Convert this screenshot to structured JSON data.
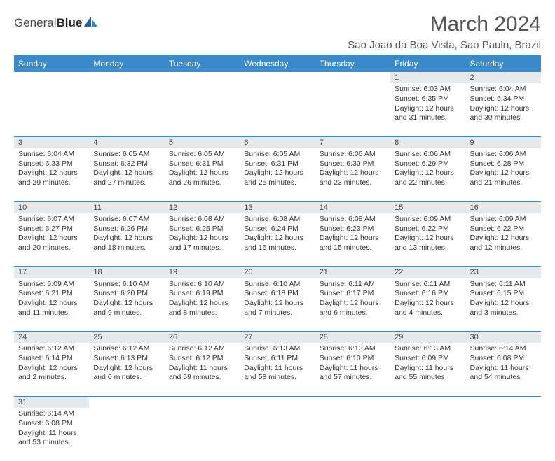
{
  "brand": {
    "word1": "General",
    "word2": "Blue"
  },
  "title": "March 2024",
  "location": "Sao Joao da Boa Vista, Sao Paulo, Brazil",
  "colors": {
    "header_bg": "#3a89c9",
    "header_text": "#ffffff",
    "daynum_bg": "#e7e8ea",
    "border": "#3a89c9",
    "body_text": "#333333",
    "title_color": "#555555"
  },
  "day_headers": [
    "Sunday",
    "Monday",
    "Tuesday",
    "Wednesday",
    "Thursday",
    "Friday",
    "Saturday"
  ],
  "weeks": [
    {
      "nums": [
        "",
        "",
        "",
        "",
        "",
        "1",
        "2"
      ],
      "cells": [
        null,
        null,
        null,
        null,
        null,
        {
          "sr": "Sunrise: 6:03 AM",
          "ss": "Sunset: 6:35 PM",
          "d1": "Daylight: 12 hours",
          "d2": "and 31 minutes."
        },
        {
          "sr": "Sunrise: 6:04 AM",
          "ss": "Sunset: 6:34 PM",
          "d1": "Daylight: 12 hours",
          "d2": "and 30 minutes."
        }
      ]
    },
    {
      "nums": [
        "3",
        "4",
        "5",
        "6",
        "7",
        "8",
        "9"
      ],
      "cells": [
        {
          "sr": "Sunrise: 6:04 AM",
          "ss": "Sunset: 6:33 PM",
          "d1": "Daylight: 12 hours",
          "d2": "and 29 minutes."
        },
        {
          "sr": "Sunrise: 6:05 AM",
          "ss": "Sunset: 6:32 PM",
          "d1": "Daylight: 12 hours",
          "d2": "and 27 minutes."
        },
        {
          "sr": "Sunrise: 6:05 AM",
          "ss": "Sunset: 6:31 PM",
          "d1": "Daylight: 12 hours",
          "d2": "and 26 minutes."
        },
        {
          "sr": "Sunrise: 6:05 AM",
          "ss": "Sunset: 6:31 PM",
          "d1": "Daylight: 12 hours",
          "d2": "and 25 minutes."
        },
        {
          "sr": "Sunrise: 6:06 AM",
          "ss": "Sunset: 6:30 PM",
          "d1": "Daylight: 12 hours",
          "d2": "and 23 minutes."
        },
        {
          "sr": "Sunrise: 6:06 AM",
          "ss": "Sunset: 6:29 PM",
          "d1": "Daylight: 12 hours",
          "d2": "and 22 minutes."
        },
        {
          "sr": "Sunrise: 6:06 AM",
          "ss": "Sunset: 6:28 PM",
          "d1": "Daylight: 12 hours",
          "d2": "and 21 minutes."
        }
      ]
    },
    {
      "nums": [
        "10",
        "11",
        "12",
        "13",
        "14",
        "15",
        "16"
      ],
      "cells": [
        {
          "sr": "Sunrise: 6:07 AM",
          "ss": "Sunset: 6:27 PM",
          "d1": "Daylight: 12 hours",
          "d2": "and 20 minutes."
        },
        {
          "sr": "Sunrise: 6:07 AM",
          "ss": "Sunset: 6:26 PM",
          "d1": "Daylight: 12 hours",
          "d2": "and 18 minutes."
        },
        {
          "sr": "Sunrise: 6:08 AM",
          "ss": "Sunset: 6:25 PM",
          "d1": "Daylight: 12 hours",
          "d2": "and 17 minutes."
        },
        {
          "sr": "Sunrise: 6:08 AM",
          "ss": "Sunset: 6:24 PM",
          "d1": "Daylight: 12 hours",
          "d2": "and 16 minutes."
        },
        {
          "sr": "Sunrise: 6:08 AM",
          "ss": "Sunset: 6:23 PM",
          "d1": "Daylight: 12 hours",
          "d2": "and 15 minutes."
        },
        {
          "sr": "Sunrise: 6:09 AM",
          "ss": "Sunset: 6:22 PM",
          "d1": "Daylight: 12 hours",
          "d2": "and 13 minutes."
        },
        {
          "sr": "Sunrise: 6:09 AM",
          "ss": "Sunset: 6:22 PM",
          "d1": "Daylight: 12 hours",
          "d2": "and 12 minutes."
        }
      ]
    },
    {
      "nums": [
        "17",
        "18",
        "19",
        "20",
        "21",
        "22",
        "23"
      ],
      "cells": [
        {
          "sr": "Sunrise: 6:09 AM",
          "ss": "Sunset: 6:21 PM",
          "d1": "Daylight: 12 hours",
          "d2": "and 11 minutes."
        },
        {
          "sr": "Sunrise: 6:10 AM",
          "ss": "Sunset: 6:20 PM",
          "d1": "Daylight: 12 hours",
          "d2": "and 9 minutes."
        },
        {
          "sr": "Sunrise: 6:10 AM",
          "ss": "Sunset: 6:19 PM",
          "d1": "Daylight: 12 hours",
          "d2": "and 8 minutes."
        },
        {
          "sr": "Sunrise: 6:10 AM",
          "ss": "Sunset: 6:18 PM",
          "d1": "Daylight: 12 hours",
          "d2": "and 7 minutes."
        },
        {
          "sr": "Sunrise: 6:11 AM",
          "ss": "Sunset: 6:17 PM",
          "d1": "Daylight: 12 hours",
          "d2": "and 6 minutes."
        },
        {
          "sr": "Sunrise: 6:11 AM",
          "ss": "Sunset: 6:16 PM",
          "d1": "Daylight: 12 hours",
          "d2": "and 4 minutes."
        },
        {
          "sr": "Sunrise: 6:11 AM",
          "ss": "Sunset: 6:15 PM",
          "d1": "Daylight: 12 hours",
          "d2": "and 3 minutes."
        }
      ]
    },
    {
      "nums": [
        "24",
        "25",
        "26",
        "27",
        "28",
        "29",
        "30"
      ],
      "cells": [
        {
          "sr": "Sunrise: 6:12 AM",
          "ss": "Sunset: 6:14 PM",
          "d1": "Daylight: 12 hours",
          "d2": "and 2 minutes."
        },
        {
          "sr": "Sunrise: 6:12 AM",
          "ss": "Sunset: 6:13 PM",
          "d1": "Daylight: 12 hours",
          "d2": "and 0 minutes."
        },
        {
          "sr": "Sunrise: 6:12 AM",
          "ss": "Sunset: 6:12 PM",
          "d1": "Daylight: 11 hours",
          "d2": "and 59 minutes."
        },
        {
          "sr": "Sunrise: 6:13 AM",
          "ss": "Sunset: 6:11 PM",
          "d1": "Daylight: 11 hours",
          "d2": "and 58 minutes."
        },
        {
          "sr": "Sunrise: 6:13 AM",
          "ss": "Sunset: 6:10 PM",
          "d1": "Daylight: 11 hours",
          "d2": "and 57 minutes."
        },
        {
          "sr": "Sunrise: 6:13 AM",
          "ss": "Sunset: 6:09 PM",
          "d1": "Daylight: 11 hours",
          "d2": "and 55 minutes."
        },
        {
          "sr": "Sunrise: 6:14 AM",
          "ss": "Sunset: 6:08 PM",
          "d1": "Daylight: 11 hours",
          "d2": "and 54 minutes."
        }
      ]
    },
    {
      "nums": [
        "31",
        "",
        "",
        "",
        "",
        "",
        ""
      ],
      "cells": [
        {
          "sr": "Sunrise: 6:14 AM",
          "ss": "Sunset: 6:08 PM",
          "d1": "Daylight: 11 hours",
          "d2": "and 53 minutes."
        },
        null,
        null,
        null,
        null,
        null,
        null
      ]
    }
  ]
}
